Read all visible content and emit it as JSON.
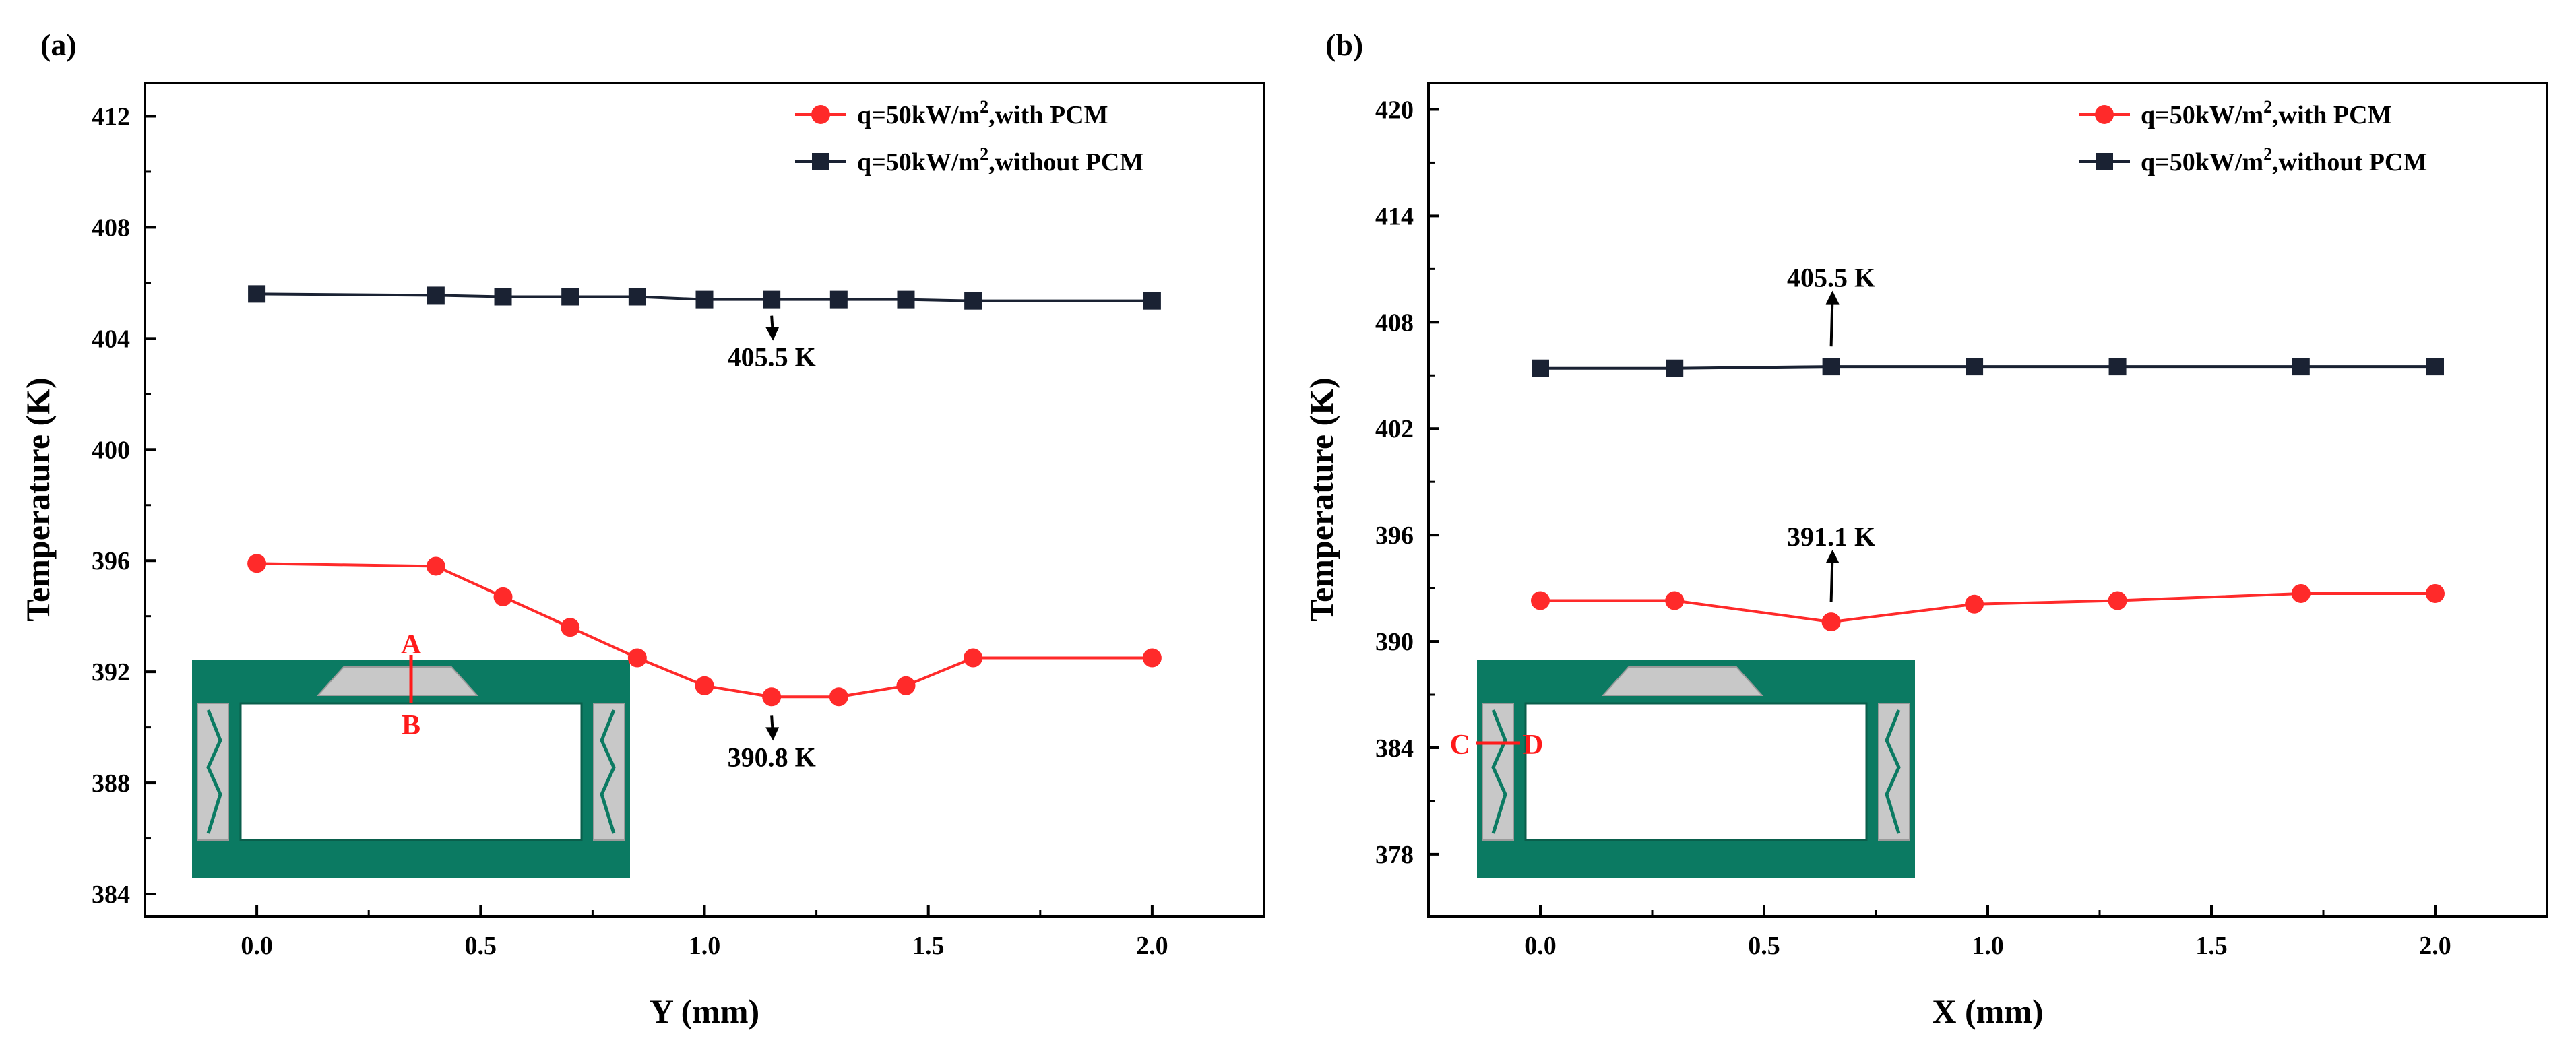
{
  "colors": {
    "with_pcm": "#ff2a2a",
    "without_pcm": "#1a2233",
    "channel_wall": "#0b7a62",
    "pcm_fill": "#c8c8c8",
    "marker_line": "#ff1a1a"
  },
  "chart_data": [
    {
      "type": "line",
      "panel_label": "(a)",
      "xlabel": "Y (mm)",
      "ylabel": "Temperature (K)",
      "xlim": [
        -0.25,
        2.25
      ],
      "ylim": [
        383.2,
        413.2
      ],
      "xticks": [
        0.0,
        0.5,
        1.0,
        1.5,
        2.0
      ],
      "xtick_labels": [
        "0.0",
        "0.5",
        "1.0",
        "1.5",
        "2.0"
      ],
      "yticks": [
        384,
        388,
        392,
        396,
        400,
        404,
        408,
        412
      ],
      "ytick_labels": [
        "384",
        "388",
        "392",
        "396",
        "400",
        "404",
        "408",
        "412"
      ],
      "legend": [
        {
          "base": "q=50kW/m",
          "sup": "2",
          "tail": ",with PCM"
        },
        {
          "base": "q=50kW/m",
          "sup": "2",
          "tail": ",without PCM"
        }
      ],
      "series": [
        {
          "name": "q=50kW/m2,with PCM",
          "marker": "circle",
          "x": [
            0.0,
            0.4,
            0.55,
            0.7,
            0.85,
            1.0,
            1.15,
            1.3,
            1.45,
            1.6,
            2.0
          ],
          "y": [
            395.9,
            395.8,
            394.7,
            393.6,
            392.5,
            391.5,
            391.1,
            391.1,
            391.5,
            392.5,
            392.5
          ]
        },
        {
          "name": "q=50kW/m2,without PCM",
          "marker": "square",
          "x": [
            0.0,
            0.4,
            0.55,
            0.7,
            0.85,
            1.0,
            1.15,
            1.3,
            1.45,
            1.6,
            2.0
          ],
          "y": [
            405.6,
            405.55,
            405.5,
            405.5,
            405.5,
            405.4,
            405.4,
            405.4,
            405.4,
            405.35,
            405.35
          ]
        }
      ],
      "annotations": [
        {
          "text": "405.5 K",
          "x": 1.15,
          "y": 405.4,
          "arrow": "down",
          "text_y": 403.0
        },
        {
          "text": "390.8 K",
          "x": 1.15,
          "y": 391.0,
          "arrow": "down",
          "text_y": 388.6
        }
      ],
      "inset_labels": [
        "A",
        "B"
      ]
    },
    {
      "type": "line",
      "panel_label": "(b)",
      "xlabel": "X (mm)",
      "ylabel": "Temperature (K)",
      "xlim": [
        -0.25,
        2.25
      ],
      "ylim": [
        374.5,
        421.5
      ],
      "xticks": [
        0.0,
        0.5,
        1.0,
        1.5,
        2.0
      ],
      "xtick_labels": [
        "0.0",
        "0.5",
        "1.0",
        "1.5",
        "2.0"
      ],
      "yticks": [
        378,
        384,
        390,
        396,
        402,
        408,
        414,
        420
      ],
      "ytick_labels": [
        "378",
        "384",
        "390",
        "396",
        "402",
        "408",
        "414",
        "420"
      ],
      "legend": [
        {
          "base": "q=50kW/m",
          "sup": "2",
          "tail": ",with PCM"
        },
        {
          "base": "q=50kW/m",
          "sup": "2",
          "tail": ",without PCM"
        }
      ],
      "series": [
        {
          "name": "q=50kW/m2,with PCM",
          "marker": "circle",
          "x": [
            0.0,
            0.3,
            0.65,
            0.97,
            1.29,
            1.7,
            2.0
          ],
          "y": [
            392.3,
            392.3,
            391.1,
            392.1,
            392.3,
            392.7,
            392.7
          ]
        },
        {
          "name": "q=50kW/m2,without PCM",
          "marker": "square",
          "x": [
            0.0,
            0.3,
            0.65,
            0.97,
            1.29,
            1.7,
            2.0
          ],
          "y": [
            405.4,
            405.4,
            405.5,
            405.5,
            405.5,
            405.5,
            405.5
          ]
        }
      ],
      "annotations": [
        {
          "text": "405.5 K",
          "x": 0.65,
          "y": 405.8,
          "arrow": "up",
          "text_y": 410.0
        },
        {
          "text": "391.1 K",
          "x": 0.65,
          "y": 391.4,
          "arrow": "up",
          "text_y": 395.4
        }
      ],
      "inset_labels": [
        "C",
        "D"
      ]
    }
  ]
}
